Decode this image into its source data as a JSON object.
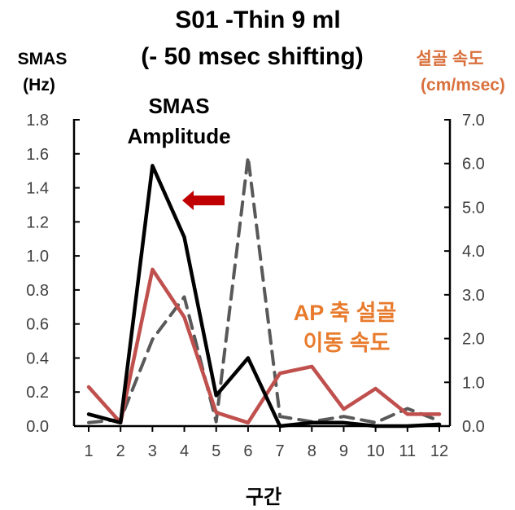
{
  "chart_data": {
    "type": "line",
    "title_lines": [
      "S01 -Thin 9 ml",
      "(- 50 msec shifting)"
    ],
    "xlabel": "구간",
    "ylabel_left_lines": [
      "SMAS",
      "(Hz)"
    ],
    "ylabel_right_lines": [
      "설골 속도",
      "(cm/msec)"
    ],
    "categories": [
      "1",
      "2",
      "3",
      "4",
      "5",
      "6",
      "7",
      "8",
      "9",
      "10",
      "11",
      "12"
    ],
    "y_left": {
      "min": 0,
      "max": 1.8,
      "ticks": [
        "0.0",
        "0.2",
        "0.4",
        "0.6",
        "0.8",
        "1.0",
        "1.2",
        "1.4",
        "1.6",
        "1.8"
      ]
    },
    "y_right": {
      "min": 0,
      "max": 7,
      "ticks": [
        "0.0",
        "1.0",
        "2.0",
        "3.0",
        "4.0",
        "5.0",
        "6.0",
        "7.0"
      ]
    },
    "grid": false,
    "legend": "none",
    "series": [
      {
        "axis": "left",
        "color": "#000000",
        "style": "solid",
        "values": [
          0.07,
          0.02,
          1.53,
          1.11,
          0.18,
          0.4,
          0.0,
          0.02,
          0.02,
          0.0,
          0.0,
          0.01
        ]
      },
      {
        "axis": "left",
        "color": "#c0504d",
        "style": "solid",
        "values": [
          0.23,
          0.02,
          0.92,
          0.64,
          0.08,
          0.02,
          0.31,
          0.35,
          0.1,
          0.22,
          0.07,
          0.07
        ]
      },
      {
        "axis": "right",
        "color": "#595959",
        "style": "dashed",
        "values": [
          0.08,
          0.15,
          1.98,
          2.95,
          0.1,
          6.15,
          0.22,
          0.1,
          0.22,
          0.08,
          0.4,
          0.12
        ]
      }
    ],
    "annotations": {
      "smas_lines": [
        "SMAS",
        "Amplitude"
      ],
      "ap_lines": [
        "AP 축 설골",
        "이동 속도"
      ]
    },
    "colors": {
      "ap_text": "#e87a2c",
      "arrow": "#c00000",
      "right_axis_label": "#d9703c"
    }
  }
}
